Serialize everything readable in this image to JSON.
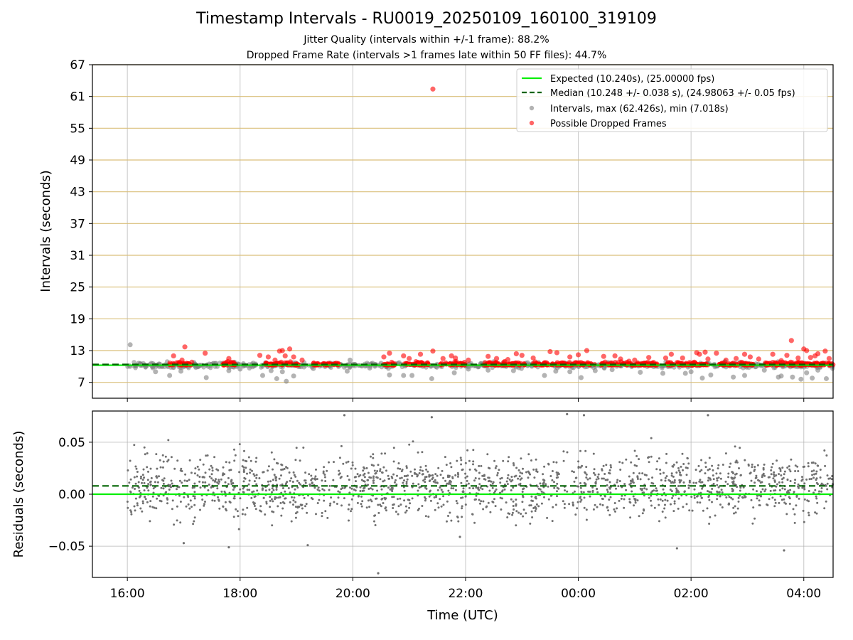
{
  "chart_data": [
    {
      "type": "scatter",
      "title": "Timestamp Intervals - RU0019_20250109_160100_319109",
      "subtitle_lines": [
        "Jitter Quality (intervals within +/-1 frame): 88.2%",
        "Dropped Frame Rate (intervals >1 frames late within 50 FF files): 44.7%"
      ],
      "ylabel": "Intervals (seconds)",
      "ylim": [
        4,
        67
      ],
      "yticks": [
        "7",
        "13",
        "19",
        "25",
        "31",
        "37",
        "43",
        "49",
        "55",
        "61",
        "67"
      ],
      "ytick_values": [
        7,
        13,
        19,
        25,
        31,
        37,
        43,
        49,
        55,
        61,
        67
      ],
      "xlim_hours": [
        15.38,
        28.52
      ],
      "grid": true,
      "legend_position": "top-right",
      "legend": [
        "Expected (10.240s), (25.00000 fps)",
        "Median (10.248 +/- 0.038 s), (24.98063 +/- 0.05 fps)",
        "Intervals, max (62.426s), min (7.018s)",
        "Possible Dropped Frames"
      ],
      "expected": 10.24,
      "median": 10.248,
      "max_interval": 62.426,
      "min_interval": 7.018,
      "series": [
        {
          "name": "Intervals, max (62.426s), min (7.018s)",
          "color": "#808080",
          "points": [
            [
              16.05,
              14.1
            ],
            [
              16.2,
              10.6
            ],
            [
              16.5,
              9.0
            ],
            [
              16.75,
              8.3
            ],
            [
              16.95,
              9.1
            ],
            [
              17.4,
              7.9
            ],
            [
              17.8,
              9.2
            ],
            [
              17.9,
              10.8
            ],
            [
              18.0,
              9.5
            ],
            [
              18.4,
              8.3
            ],
            [
              18.55,
              9.2
            ],
            [
              18.65,
              7.7
            ],
            [
              18.75,
              9.0
            ],
            [
              18.82,
              7.2
            ],
            [
              18.95,
              8.2
            ],
            [
              19.3,
              9.6
            ],
            [
              19.9,
              9.1
            ],
            [
              19.95,
              11.2
            ],
            [
              20.3,
              9.7
            ],
            [
              20.5,
              10.6
            ],
            [
              20.65,
              8.4
            ],
            [
              20.9,
              8.3
            ],
            [
              21.05,
              8.3
            ],
            [
              21.4,
              7.7
            ],
            [
              21.8,
              8.8
            ],
            [
              22.05,
              9.5
            ],
            [
              22.4,
              9.3
            ],
            [
              22.5,
              10.9
            ],
            [
              22.85,
              9.2
            ],
            [
              23.4,
              8.3
            ],
            [
              23.6,
              9.1
            ],
            [
              23.85,
              9.0
            ],
            [
              24.05,
              7.9
            ],
            [
              24.3,
              9.2
            ],
            [
              24.6,
              9.4
            ],
            [
              25.1,
              8.9
            ],
            [
              25.5,
              8.7
            ],
            [
              25.9,
              8.7
            ],
            [
              26.0,
              9.0
            ],
            [
              26.2,
              7.8
            ],
            [
              26.35,
              8.4
            ],
            [
              26.6,
              10.9
            ],
            [
              26.75,
              8.0
            ],
            [
              26.95,
              8.3
            ],
            [
              27.3,
              9.3
            ],
            [
              27.55,
              8.0
            ],
            [
              27.6,
              8.2
            ],
            [
              27.8,
              8.0
            ],
            [
              27.95,
              7.6
            ],
            [
              28.05,
              8.8
            ],
            [
              28.15,
              7.8
            ],
            [
              28.25,
              9.3
            ],
            [
              28.4,
              7.7
            ],
            [
              17.2,
              10.4
            ],
            [
              19.0,
              10.6
            ],
            [
              21.2,
              10.3
            ],
            [
              23.1,
              10.7
            ],
            [
              25.6,
              10.2
            ]
          ]
        },
        {
          "name": "Possible Dropped Frames",
          "color": "#ff0000",
          "points": [
            [
              21.42,
              62.4
            ],
            [
              16.82,
              12.0
            ],
            [
              16.97,
              11.2
            ],
            [
              17.02,
              13.7
            ],
            [
              17.38,
              12.5
            ],
            [
              17.8,
              11.5
            ],
            [
              18.35,
              12.1
            ],
            [
              18.5,
              11.8
            ],
            [
              18.62,
              11.2
            ],
            [
              18.7,
              12.9
            ],
            [
              18.75,
              13.0
            ],
            [
              18.8,
              12.0
            ],
            [
              18.88,
              13.3
            ],
            [
              18.95,
              11.8
            ],
            [
              19.1,
              11.2
            ],
            [
              20.55,
              11.8
            ],
            [
              20.65,
              12.5
            ],
            [
              20.9,
              12.0
            ],
            [
              21.0,
              11.5
            ],
            [
              21.2,
              12.3
            ],
            [
              21.42,
              12.9
            ],
            [
              21.6,
              11.5
            ],
            [
              21.75,
              12.0
            ],
            [
              21.82,
              11.6
            ],
            [
              22.05,
              11.2
            ],
            [
              22.4,
              11.9
            ],
            [
              22.55,
              11.5
            ],
            [
              22.75,
              11.3
            ],
            [
              22.9,
              12.4
            ],
            [
              23.0,
              12.1
            ],
            [
              23.2,
              11.6
            ],
            [
              23.5,
              12.8
            ],
            [
              23.62,
              12.6
            ],
            [
              23.85,
              11.8
            ],
            [
              24.0,
              12.2
            ],
            [
              24.15,
              13.0
            ],
            [
              24.45,
              11.9
            ],
            [
              24.65,
              12.0
            ],
            [
              24.75,
              11.4
            ],
            [
              25.0,
              11.2
            ],
            [
              25.25,
              11.7
            ],
            [
              25.55,
              11.6
            ],
            [
              25.65,
              12.3
            ],
            [
              25.85,
              11.6
            ],
            [
              26.1,
              12.6
            ],
            [
              26.15,
              12.3
            ],
            [
              26.25,
              12.7
            ],
            [
              26.3,
              11.4
            ],
            [
              26.45,
              12.5
            ],
            [
              26.62,
              11.2
            ],
            [
              26.8,
              11.5
            ],
            [
              26.95,
              12.3
            ],
            [
              27.05,
              11.8
            ],
            [
              27.2,
              11.4
            ],
            [
              27.45,
              12.3
            ],
            [
              27.6,
              11.1
            ],
            [
              27.7,
              12.1
            ],
            [
              27.78,
              14.9
            ],
            [
              27.9,
              11.6
            ],
            [
              28.0,
              13.3
            ],
            [
              28.05,
              13.0
            ],
            [
              28.12,
              11.7
            ],
            [
              28.2,
              12.0
            ],
            [
              28.25,
              12.4
            ],
            [
              28.38,
              12.9
            ],
            [
              28.45,
              11.5
            ]
          ],
          "dense_bands_hours": [
            [
              16.75,
              17.15
            ],
            [
              17.7,
              17.95
            ],
            [
              18.45,
              19.05
            ],
            [
              19.3,
              19.75
            ],
            [
              20.55,
              20.75
            ],
            [
              20.9,
              21.35
            ],
            [
              21.55,
              22.0
            ],
            [
              22.3,
              23.05
            ],
            [
              23.2,
              24.3
            ],
            [
              24.4,
              25.4
            ],
            [
              25.55,
              26.3
            ],
            [
              26.5,
              27.1
            ],
            [
              27.3,
              28.52
            ]
          ],
          "dense_band_value": 10.24
        }
      ]
    },
    {
      "type": "scatter",
      "ylabel": "Residuals (seconds)",
      "xlabel": "Time (UTC)",
      "ylim": [
        -0.08,
        0.08
      ],
      "yticks": [
        "0.05",
        "0.00",
        "−0.05"
      ],
      "ytick_values": [
        0.05,
        0.0,
        -0.05
      ],
      "xticks": [
        "16:00",
        "18:00",
        "20:00",
        "22:00",
        "00:00",
        "02:00",
        "04:00"
      ],
      "xtick_hours": [
        16,
        18,
        20,
        22,
        24,
        26,
        28
      ],
      "xlim_hours": [
        15.38,
        28.52
      ],
      "grid": true,
      "expected_residual": 0.0,
      "median_residual": 0.008,
      "series": [
        {
          "name": "",
          "color": "#808080",
          "x_range_hours": [
            16.0,
            28.52
          ],
          "count": 1800,
          "center": 0.008,
          "spread": 0.015,
          "extremes": [
            [
              20.45,
              -0.076
            ],
            [
              19.85,
              0.076
            ],
            [
              21.4,
              0.074
            ],
            [
              23.8,
              0.077
            ],
            [
              24.1,
              0.076
            ],
            [
              26.3,
              0.076
            ],
            [
              27.65,
              -0.054
            ],
            [
              17.0,
              -0.047
            ],
            [
              19.2,
              -0.049
            ],
            [
              17.8,
              -0.051
            ],
            [
              21.9,
              -0.041
            ],
            [
              25.75,
              -0.052
            ]
          ]
        }
      ]
    }
  ]
}
